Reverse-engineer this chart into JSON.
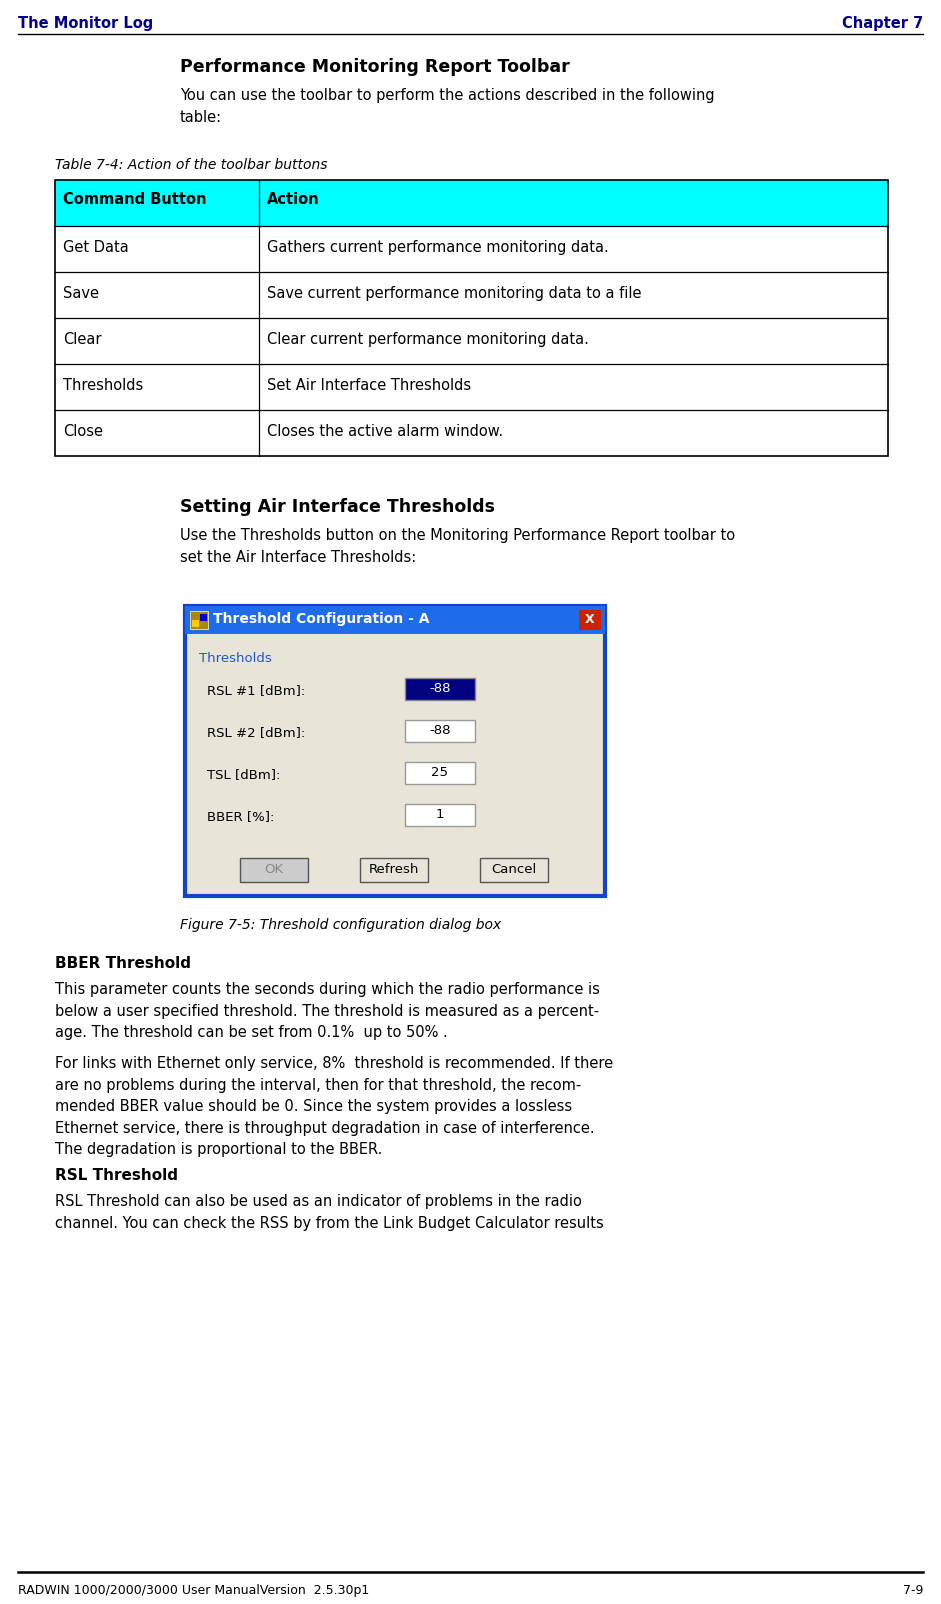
{
  "header_left": "The Monitor Log",
  "header_right": "Chapter 7",
  "header_color": "#00008B",
  "page_bg": "#ffffff",
  "section_title": "Performance Monitoring Report Toolbar",
  "section_intro": "You can use the toolbar to perform the actions described in the following\ntable:",
  "table_caption": "Table 7-4: Action of the toolbar buttons",
  "table_header": [
    "Command Button",
    "Action"
  ],
  "table_header_bg": "#00FFFF",
  "table_rows": [
    [
      "Get Data",
      "Gathers current performance monitoring data."
    ],
    [
      "Save",
      "Save current performance monitoring data to a file"
    ],
    [
      "Clear",
      "Clear current performance monitoring data."
    ],
    [
      "Thresholds",
      "Set Air Interface Thresholds"
    ],
    [
      "Close",
      "Closes the active alarm window."
    ]
  ],
  "section2_title": "Setting Air Interface Thresholds",
  "section2_intro": "Use the Thresholds button on the Monitoring Performance Report toolbar to\nset the Air Interface Thresholds:",
  "figure_caption": "Figure 7-5: Threshold configuration dialog box",
  "bber_title": "BBER Threshold",
  "bber_para1": "This parameter counts the seconds during which the radio performance is\nbelow a user specified threshold. The threshold is measured as a percent-\nage. The threshold can be set from 0.1%  up to 50% .",
  "bber_para2": "For links with Ethernet only service, 8%  threshold is recommended. If there\nare no problems during the interval, then for that threshold, the recom-\nmended BBER value should be 0. Since the system provides a lossless\nEthernet service, there is throughput degradation in case of interference.\nThe degradation is proportional to the BBER.",
  "rsl_title": "RSL Threshold",
  "rsl_text": "RSL Threshold can also be used as an indicator of problems in the radio\nchannel. You can check the RSS by from the Link Budget Calculator results",
  "footer_left": "RADWIN 1000/2000/3000 User ManualVersion  2.5.30p1",
  "footer_right": "7-9",
  "table_border_color": "#000000",
  "dialog_title": "Threshold Configuration - A",
  "dialog_fields": [
    "RSL #1 [dBm]:",
    "RSL #2 [dBm]:",
    "TSL [dBm]:",
    "BBER [%]:"
  ],
  "dialog_values": [
    "-88",
    "-88",
    "25",
    "1"
  ],
  "dialog_buttons": [
    "OK",
    "Refresh",
    "Cancel"
  ],
  "dialog_bg": "#e8e4d8",
  "dialog_title_bg": "#1e6beb",
  "dialog_close_bg": "#cc2200",
  "dialog_group_label": "Thresholds",
  "dialog_group_label_color": "#2255cc"
}
